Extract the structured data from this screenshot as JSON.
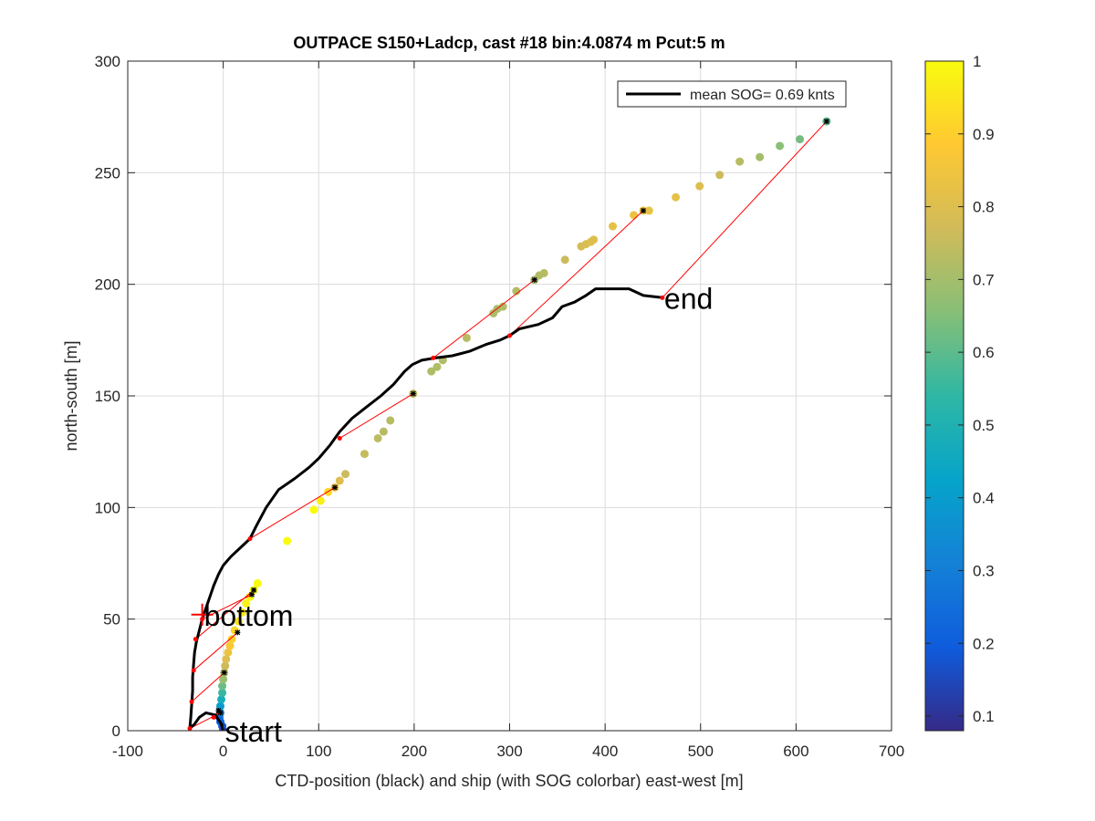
{
  "chart_data": {
    "type": "scatter",
    "title": "OUTPACE S150+Ladcp, cast #18 bin:4.0874 m  Pcut:5 m",
    "xlabel": "CTD-position (black) and ship (with SOG colorbar) east-west [m]",
    "ylabel": "north-south [m]",
    "xlim": [
      -100,
      700
    ],
    "ylim": [
      0,
      300
    ],
    "xticks": [
      "-100",
      "0",
      "100",
      "200",
      "300",
      "400",
      "500",
      "600",
      "700"
    ],
    "yticks": [
      "0",
      "50",
      "100",
      "150",
      "200",
      "250",
      "300"
    ],
    "grid": true,
    "legend": {
      "location": "top-right",
      "entries": [
        {
          "label": "mean SOG=  0.69 knts",
          "color": "#000000"
        }
      ]
    },
    "colorbar": {
      "range": [
        0.08,
        1.0
      ],
      "ticks": [
        "0.1",
        "0.2",
        "0.3",
        "0.4",
        "0.5",
        "0.6",
        "0.7",
        "0.8",
        "0.9",
        "1"
      ],
      "colormap": [
        "#352a87",
        "#0f5cdd",
        "#1481d6",
        "#06a4ca",
        "#2eb7a4",
        "#87bf77",
        "#d1bb59",
        "#fec832",
        "#f9fb0e"
      ]
    },
    "ctd_track": [
      [
        0,
        0
      ],
      [
        -2,
        3
      ],
      [
        -8,
        7
      ],
      [
        -18,
        8
      ],
      [
        -25,
        6
      ],
      [
        -30,
        3
      ],
      [
        -35,
        1
      ],
      [
        -34,
        6
      ],
      [
        -33,
        12
      ],
      [
        -32,
        18
      ],
      [
        -32,
        24
      ],
      [
        -31,
        30
      ],
      [
        -30,
        35
      ],
      [
        -28,
        40
      ],
      [
        -25,
        45
      ],
      [
        -22,
        50
      ],
      [
        -18,
        55
      ],
      [
        -14,
        60
      ],
      [
        -10,
        65
      ],
      [
        -5,
        70
      ],
      [
        0,
        74
      ],
      [
        8,
        78
      ],
      [
        18,
        82
      ],
      [
        28,
        86
      ],
      [
        35,
        92
      ],
      [
        45,
        100
      ],
      [
        58,
        108
      ],
      [
        75,
        113
      ],
      [
        90,
        118
      ],
      [
        100,
        122
      ],
      [
        112,
        128
      ],
      [
        122,
        134
      ],
      [
        135,
        140
      ],
      [
        150,
        145
      ],
      [
        165,
        150
      ],
      [
        178,
        155
      ],
      [
        190,
        161
      ],
      [
        198,
        164
      ],
      [
        208,
        166
      ],
      [
        222,
        167
      ],
      [
        240,
        168
      ],
      [
        258,
        170
      ],
      [
        275,
        173
      ],
      [
        290,
        175
      ],
      [
        300,
        177
      ],
      [
        310,
        180
      ],
      [
        330,
        182
      ],
      [
        345,
        185
      ],
      [
        355,
        190
      ],
      [
        368,
        192
      ],
      [
        380,
        195
      ],
      [
        390,
        198
      ],
      [
        410,
        198
      ],
      [
        425,
        198
      ],
      [
        440,
        195
      ],
      [
        460,
        194
      ]
    ],
    "ship_points": [
      {
        "x": 0,
        "y": 0,
        "sog": 0.08
      },
      {
        "x": -1,
        "y": 2,
        "sog": 0.18
      },
      {
        "x": -3,
        "y": 4,
        "sog": 0.2
      },
      {
        "x": -4,
        "y": 6,
        "sog": 0.24
      },
      {
        "x": -3,
        "y": 8,
        "sog": 0.3
      },
      {
        "x": -3,
        "y": 11,
        "sog": 0.4
      },
      {
        "x": -2,
        "y": 14,
        "sog": 0.48
      },
      {
        "x": -1,
        "y": 17,
        "sog": 0.55
      },
      {
        "x": -1,
        "y": 20,
        "sog": 0.62
      },
      {
        "x": 0,
        "y": 23,
        "sog": 0.68
      },
      {
        "x": 1,
        "y": 26,
        "sog": 0.72
      },
      {
        "x": 2,
        "y": 29,
        "sog": 0.76
      },
      {
        "x": 3,
        "y": 32,
        "sog": 0.8
      },
      {
        "x": 5,
        "y": 35,
        "sog": 0.84
      },
      {
        "x": 7,
        "y": 38,
        "sog": 0.88
      },
      {
        "x": 9,
        "y": 41,
        "sog": 0.9
      },
      {
        "x": 12,
        "y": 45,
        "sog": 0.92
      },
      {
        "x": 16,
        "y": 49,
        "sog": 0.94
      },
      {
        "x": 20,
        "y": 53,
        "sog": 0.96
      },
      {
        "x": 24,
        "y": 57,
        "sog": 0.98
      },
      {
        "x": 28,
        "y": 60,
        "sog": 0.99
      },
      {
        "x": 32,
        "y": 63,
        "sog": 1.0
      },
      {
        "x": 36,
        "y": 66,
        "sog": 1.0
      },
      {
        "x": 67,
        "y": 85,
        "sog": 1.0
      },
      {
        "x": 95,
        "y": 99,
        "sog": 1.0
      },
      {
        "x": 102,
        "y": 103,
        "sog": 0.97
      },
      {
        "x": 110,
        "y": 107,
        "sog": 0.92
      },
      {
        "x": 117,
        "y": 109,
        "sog": 0.85
      },
      {
        "x": 122,
        "y": 112,
        "sog": 0.8
      },
      {
        "x": 128,
        "y": 115,
        "sog": 0.76
      },
      {
        "x": 148,
        "y": 124,
        "sog": 0.75
      },
      {
        "x": 162,
        "y": 131,
        "sog": 0.74
      },
      {
        "x": 168,
        "y": 134,
        "sog": 0.73
      },
      {
        "x": 175,
        "y": 139,
        "sog": 0.73
      },
      {
        "x": 199,
        "y": 151,
        "sog": 0.74
      },
      {
        "x": 218,
        "y": 161,
        "sog": 0.72
      },
      {
        "x": 224,
        "y": 163,
        "sog": 0.72
      },
      {
        "x": 230,
        "y": 166,
        "sog": 0.72
      },
      {
        "x": 255,
        "y": 176,
        "sog": 0.73
      },
      {
        "x": 283,
        "y": 187,
        "sog": 0.71
      },
      {
        "x": 287,
        "y": 189,
        "sog": 0.71
      },
      {
        "x": 293,
        "y": 190,
        "sog": 0.72
      },
      {
        "x": 307,
        "y": 197,
        "sog": 0.72
      },
      {
        "x": 326,
        "y": 202,
        "sog": 0.72
      },
      {
        "x": 331,
        "y": 204,
        "sog": 0.72
      },
      {
        "x": 336,
        "y": 205,
        "sog": 0.73
      },
      {
        "x": 358,
        "y": 211,
        "sog": 0.76
      },
      {
        "x": 375,
        "y": 217,
        "sog": 0.78
      },
      {
        "x": 380,
        "y": 218,
        "sog": 0.79
      },
      {
        "x": 385,
        "y": 219,
        "sog": 0.8
      },
      {
        "x": 388,
        "y": 220,
        "sog": 0.8
      },
      {
        "x": 408,
        "y": 226,
        "sog": 0.82
      },
      {
        "x": 430,
        "y": 231,
        "sog": 0.84
      },
      {
        "x": 440,
        "y": 233,
        "sog": 0.84
      },
      {
        "x": 446,
        "y": 233,
        "sog": 0.83
      },
      {
        "x": 474,
        "y": 239,
        "sog": 0.82
      },
      {
        "x": 499,
        "y": 244,
        "sog": 0.8
      },
      {
        "x": 520,
        "y": 249,
        "sog": 0.76
      },
      {
        "x": 541,
        "y": 255,
        "sog": 0.73
      },
      {
        "x": 562,
        "y": 257,
        "sog": 0.7
      },
      {
        "x": 583,
        "y": 262,
        "sog": 0.66
      },
      {
        "x": 604,
        "y": 265,
        "sog": 0.63
      },
      {
        "x": 632,
        "y": 273,
        "sog": 0.6
      }
    ],
    "connectors": [
      {
        "ctd": [
          -35,
          1
        ],
        "ship": [
          -3,
          8
        ]
      },
      {
        "ctd": [
          -10,
          6
        ],
        "ship": [
          -5,
          9
        ]
      },
      {
        "ctd": [
          -33,
          13
        ],
        "ship": [
          1,
          26
        ]
      },
      {
        "ctd": [
          -31,
          27
        ],
        "ship": [
          15,
          44
        ]
      },
      {
        "ctd": [
          -29,
          41
        ],
        "ship": [
          32,
          63
        ]
      },
      {
        "ctd": [
          -22,
          50
        ],
        "ship": [
          30,
          61
        ]
      },
      {
        "ctd": [
          28,
          86
        ],
        "ship": [
          117,
          109
        ]
      },
      {
        "ctd": [
          122,
          131
        ],
        "ship": [
          199,
          151
        ]
      },
      {
        "ctd": [
          220,
          167
        ],
        "ship": [
          326,
          202
        ]
      },
      {
        "ctd": [
          300,
          177
        ],
        "ship": [
          440,
          233
        ]
      },
      {
        "ctd": [
          460,
          194
        ],
        "ship": [
          632,
          273
        ]
      }
    ],
    "annotations": [
      {
        "text": "start",
        "x": 0,
        "y": 0
      },
      {
        "text": "bottom",
        "x": -22,
        "y": 52
      },
      {
        "text": "end",
        "x": 460,
        "y": 194
      }
    ]
  }
}
